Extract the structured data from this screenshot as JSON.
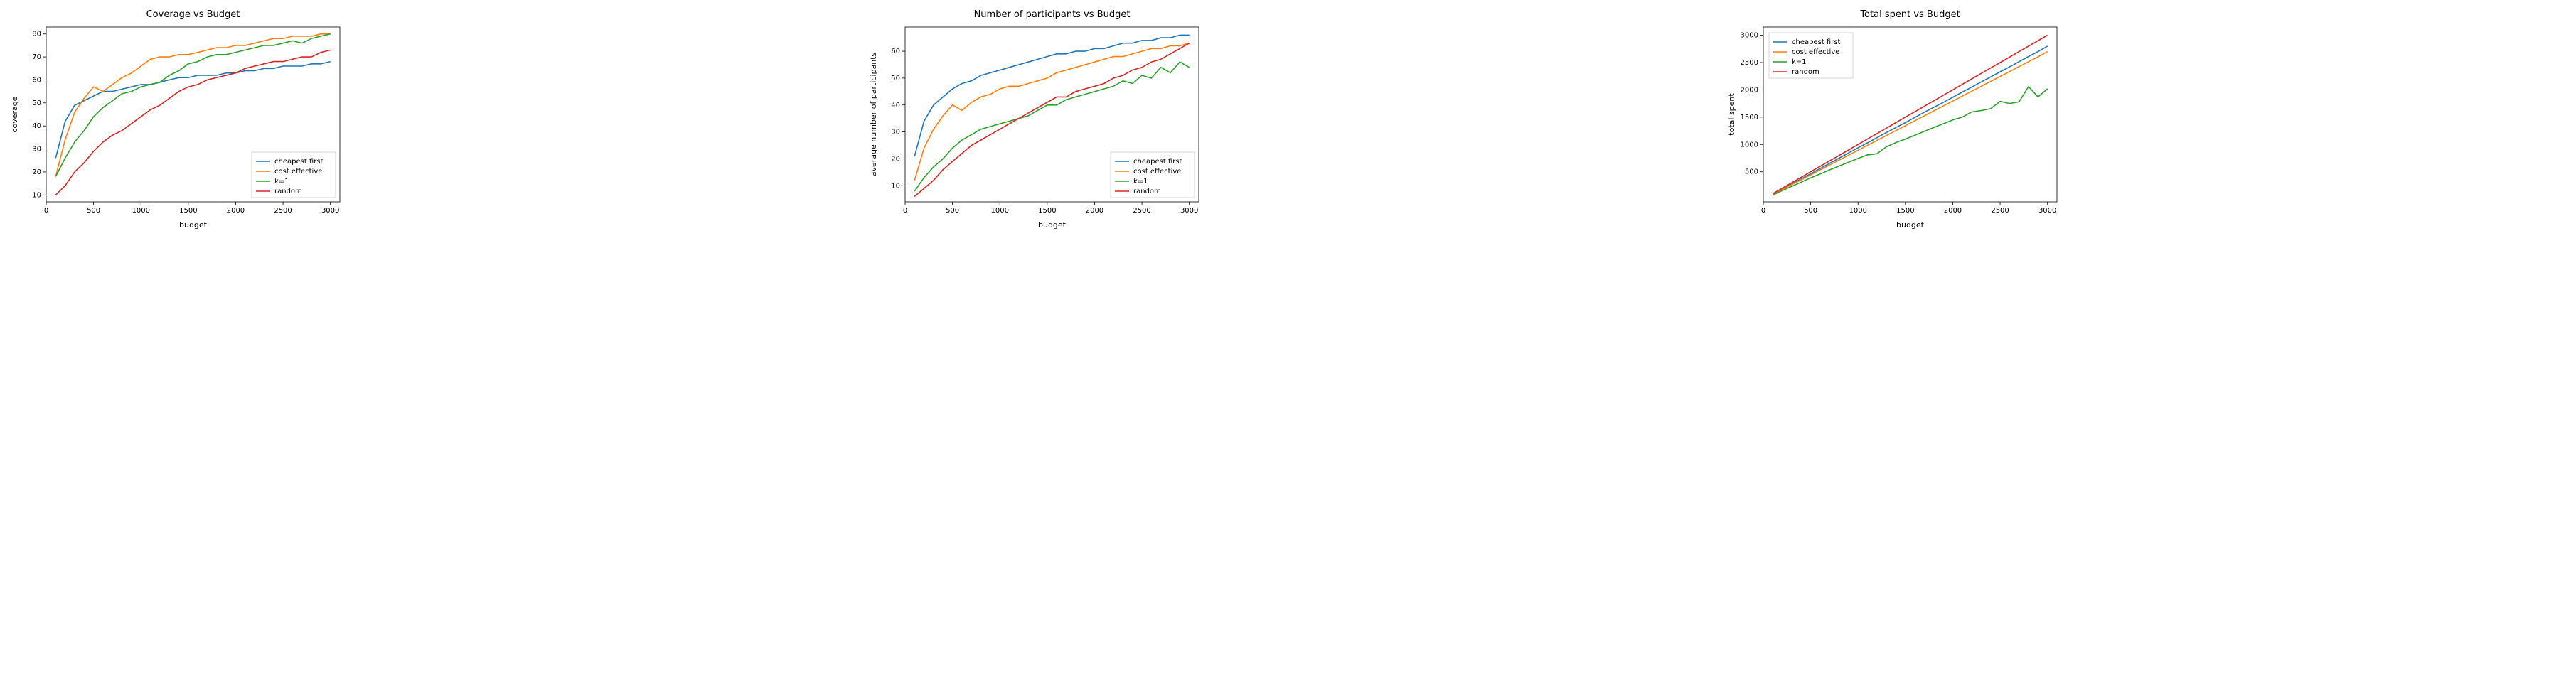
{
  "figure": {
    "background_color": "#ffffff",
    "stroke_width": 1.6,
    "font_family": "DejaVu Sans, Arial, sans-serif",
    "title_fontsize": 13,
    "label_fontsize": 11,
    "tick_fontsize": 10,
    "legend_fontsize": 10,
    "series_colors": {
      "cheapest_first": "#1f77b4",
      "cost_effective": "#ff7f0e",
      "k1": "#2ca02c",
      "random": "#d62728"
    },
    "legend_labels": {
      "cheapest_first": "cheapest first",
      "cost_effective": "cost effective",
      "k1": "k=1",
      "random": "random"
    },
    "x_values": [
      100,
      200,
      300,
      400,
      500,
      600,
      700,
      800,
      900,
      1000,
      1100,
      1200,
      1300,
      1400,
      1500,
      1600,
      1700,
      1800,
      1900,
      2000,
      2100,
      2200,
      2300,
      2400,
      2500,
      2600,
      2700,
      2800,
      2900,
      3000
    ],
    "panels": [
      {
        "id": "coverage",
        "title": "Coverage vs Budget",
        "xlabel": "budget",
        "ylabel": "coverage",
        "xlim": [
          0,
          3100
        ],
        "ylim": [
          7,
          83
        ],
        "xticks": [
          0,
          500,
          1000,
          1500,
          2000,
          2500,
          3000
        ],
        "yticks": [
          10,
          20,
          30,
          40,
          50,
          60,
          70,
          80
        ],
        "legend_pos": "lower-right",
        "series": {
          "cheapest_first": [
            26,
            42,
            49,
            51,
            53,
            55,
            55,
            56,
            57,
            58,
            58,
            59,
            60,
            61,
            61,
            62,
            62,
            62,
            63,
            63,
            64,
            64,
            65,
            65,
            66,
            66,
            66,
            67,
            67,
            68
          ],
          "cost_effective": [
            18,
            34,
            46,
            52,
            57,
            55,
            58,
            61,
            63,
            66,
            69,
            70,
            70,
            71,
            71,
            72,
            73,
            74,
            74,
            75,
            75,
            76,
            77,
            78,
            78,
            79,
            79,
            79,
            80,
            80
          ],
          "k1": [
            18,
            26,
            33,
            38,
            44,
            48,
            51,
            54,
            55,
            57,
            58,
            59,
            62,
            64,
            67,
            68,
            70,
            71,
            71,
            72,
            73,
            74,
            75,
            75,
            76,
            77,
            76,
            78,
            79,
            80
          ],
          "random": [
            10,
            14,
            20,
            24,
            29,
            33,
            36,
            38,
            41,
            44,
            47,
            49,
            52,
            55,
            57,
            58,
            60,
            61,
            62,
            63,
            65,
            66,
            67,
            68,
            68,
            69,
            70,
            70,
            72,
            73
          ]
        }
      },
      {
        "id": "participants",
        "title": "Number of participants vs Budget",
        "xlabel": "budget",
        "ylabel": "average number of participants",
        "xlim": [
          0,
          3100
        ],
        "ylim": [
          4,
          69
        ],
        "xticks": [
          0,
          500,
          1000,
          1500,
          2000,
          2500,
          3000
        ],
        "yticks": [
          10,
          20,
          30,
          40,
          50,
          60
        ],
        "legend_pos": "lower-right",
        "series": {
          "cheapest_first": [
            21,
            34,
            40,
            43,
            46,
            48,
            49,
            51,
            52,
            53,
            54,
            55,
            56,
            57,
            58,
            59,
            59,
            60,
            60,
            61,
            61,
            62,
            63,
            63,
            64,
            64,
            65,
            65,
            66,
            66
          ],
          "cost_effective": [
            12,
            24,
            31,
            36,
            40,
            38,
            41,
            43,
            44,
            46,
            47,
            47,
            48,
            49,
            50,
            52,
            53,
            54,
            55,
            56,
            57,
            58,
            58,
            59,
            60,
            61,
            61,
            62,
            62,
            63
          ],
          "k1": [
            8,
            13,
            17,
            20,
            24,
            27,
            29,
            31,
            32,
            33,
            34,
            35,
            36,
            38,
            40,
            40,
            42,
            43,
            44,
            45,
            46,
            47,
            49,
            48,
            51,
            50,
            54,
            52,
            56,
            54
          ],
          "random": [
            6,
            9,
            12,
            16,
            19,
            22,
            25,
            27,
            29,
            31,
            33,
            35,
            37,
            39,
            41,
            43,
            43,
            45,
            46,
            47,
            48,
            50,
            51,
            53,
            54,
            56,
            57,
            59,
            61,
            63
          ]
        }
      },
      {
        "id": "spent",
        "title": "Total spent vs Budget",
        "xlabel": "budget",
        "ylabel": "total spent",
        "xlim": [
          0,
          3100
        ],
        "ylim": [
          -50,
          3150
        ],
        "xticks": [
          0,
          500,
          1000,
          1500,
          2000,
          2500,
          3000
        ],
        "yticks": [
          500,
          1000,
          1500,
          2000,
          2500,
          3000
        ],
        "legend_pos": "upper-left",
        "series": {
          "cheapest_first": [
            90,
            180,
            275,
            370,
            465,
            560,
            655,
            750,
            845,
            940,
            1030,
            1125,
            1220,
            1310,
            1400,
            1495,
            1590,
            1680,
            1770,
            1865,
            1960,
            2050,
            2145,
            2235,
            2330,
            2420,
            2515,
            2610,
            2700,
            2800
          ],
          "cost_effective": [
            85,
            175,
            265,
            355,
            445,
            535,
            625,
            715,
            805,
            895,
            985,
            1075,
            1165,
            1255,
            1345,
            1435,
            1525,
            1615,
            1705,
            1795,
            1885,
            1975,
            2065,
            2155,
            2245,
            2335,
            2425,
            2515,
            2605,
            2700
          ],
          "k1": [
            75,
            155,
            235,
            310,
            390,
            460,
            535,
            605,
            675,
            745,
            810,
            830,
            960,
            1035,
            1100,
            1170,
            1240,
            1310,
            1380,
            1450,
            1500,
            1595,
            1620,
            1655,
            1790,
            1750,
            1780,
            2060,
            1870,
            2020
          ],
          "random": [
            100,
            200,
            300,
            400,
            500,
            600,
            700,
            800,
            900,
            1000,
            1100,
            1200,
            1300,
            1400,
            1500,
            1600,
            1700,
            1800,
            1900,
            2000,
            2100,
            2200,
            2300,
            2400,
            2500,
            2600,
            2700,
            2800,
            2900,
            3000
          ]
        }
      }
    ]
  }
}
